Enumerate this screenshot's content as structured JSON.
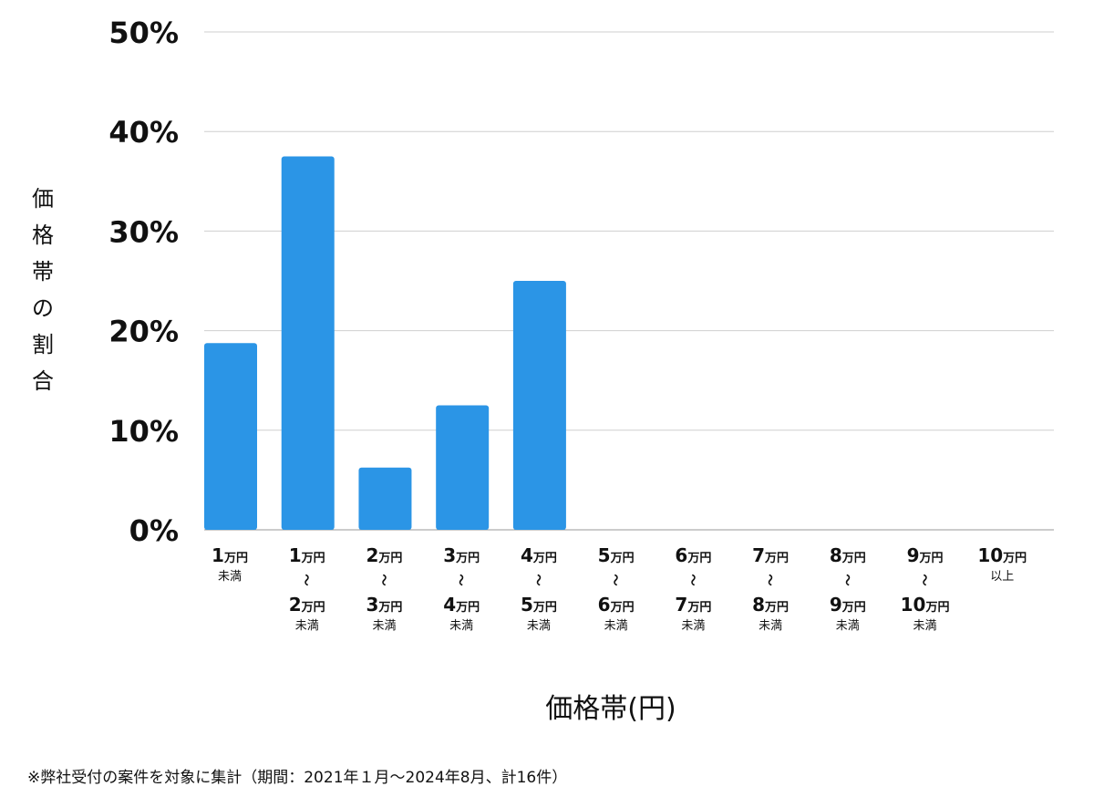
{
  "chart_data": {
    "type": "bar",
    "ylabel": "価格帯の割合",
    "xlabel": "価格帯(円)",
    "ylim": [
      0,
      50
    ],
    "yticks": [
      "0%",
      "10%",
      "20%",
      "30%",
      "40%",
      "50%"
    ],
    "ytick_values": [
      0,
      10,
      20,
      30,
      40,
      50
    ],
    "grid": true,
    "bar_color": "#2b95e6",
    "categories": [
      {
        "top": "1",
        "top_unit": "万円",
        "bottom": "",
        "bottom_unit": "",
        "sub": "未満"
      },
      {
        "top": "1",
        "top_unit": "万円",
        "bottom": "2",
        "bottom_unit": "万円",
        "sub": "未満"
      },
      {
        "top": "2",
        "top_unit": "万円",
        "bottom": "3",
        "bottom_unit": "万円",
        "sub": "未満"
      },
      {
        "top": "3",
        "top_unit": "万円",
        "bottom": "4",
        "bottom_unit": "万円",
        "sub": "未満"
      },
      {
        "top": "4",
        "top_unit": "万円",
        "bottom": "5",
        "bottom_unit": "万円",
        "sub": "未満"
      },
      {
        "top": "5",
        "top_unit": "万円",
        "bottom": "6",
        "bottom_unit": "万円",
        "sub": "未満"
      },
      {
        "top": "6",
        "top_unit": "万円",
        "bottom": "7",
        "bottom_unit": "万円",
        "sub": "未満"
      },
      {
        "top": "7",
        "top_unit": "万円",
        "bottom": "8",
        "bottom_unit": "万円",
        "sub": "未満"
      },
      {
        "top": "8",
        "top_unit": "万円",
        "bottom": "9",
        "bottom_unit": "万円",
        "sub": "未満"
      },
      {
        "top": "9",
        "top_unit": "万円",
        "bottom": "10",
        "bottom_unit": "万円",
        "sub": "未満"
      },
      {
        "top": "10",
        "top_unit": "万円",
        "bottom": "",
        "bottom_unit": "",
        "sub": "以上"
      }
    ],
    "range_mark": "〜",
    "values": [
      18.75,
      37.5,
      6.25,
      12.5,
      25,
      0,
      0,
      0,
      0,
      0,
      0
    ]
  },
  "footnote": "※弊社受付の案件を対象に集計（期間：2021年１月〜2024年8月、計16件）"
}
